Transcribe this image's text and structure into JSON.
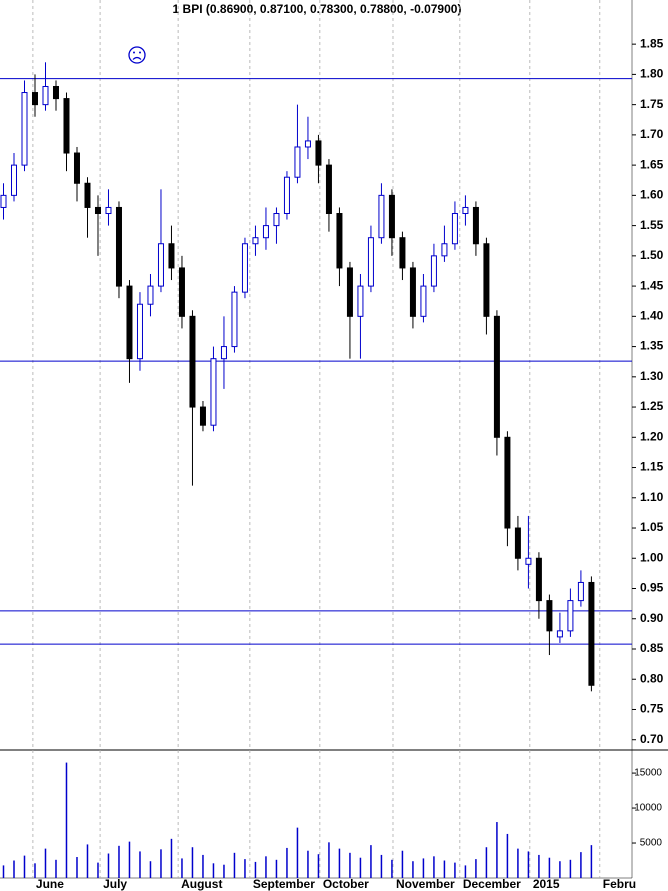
{
  "chart_data": [
    {
      "type": "candlestick",
      "title": "1 BPI (0.86900, 0.87100, 0.78300, 0.78800, -0.07900)",
      "up_color": "#0000cc",
      "down_color": "#000000",
      "x": [
        1,
        4,
        7,
        10,
        13,
        16,
        19,
        22,
        25,
        28,
        31,
        34,
        37,
        40,
        43,
        46,
        49,
        52,
        55,
        58,
        61,
        64,
        67,
        70,
        73,
        76,
        79,
        82,
        85,
        88,
        91,
        94,
        97,
        100,
        103,
        106,
        109,
        112,
        115,
        118,
        121,
        124,
        127,
        130,
        133,
        136,
        139,
        142,
        145,
        148,
        151,
        154,
        157,
        160,
        163,
        166,
        169
      ],
      "open": [
        1.58,
        1.6,
        1.65,
        1.77,
        1.75,
        1.78,
        1.76,
        1.67,
        1.62,
        1.58,
        1.57,
        1.58,
        1.45,
        1.33,
        1.42,
        1.45,
        1.52,
        1.48,
        1.4,
        1.25,
        1.22,
        1.33,
        1.35,
        1.44,
        1.52,
        1.53,
        1.55,
        1.57,
        1.63,
        1.68,
        1.69,
        1.65,
        1.57,
        1.48,
        1.4,
        1.45,
        1.53,
        1.6,
        1.53,
        1.48,
        1.4,
        1.45,
        1.5,
        1.52,
        1.57,
        1.58,
        1.52,
        1.4,
        1.2,
        1.05,
        0.99,
        1.0,
        0.93,
        0.87,
        0.88,
        0.93,
        0.96
      ],
      "high": [
        1.62,
        1.67,
        1.79,
        1.8,
        1.82,
        1.79,
        1.77,
        1.68,
        1.63,
        1.6,
        1.61,
        1.59,
        1.46,
        1.44,
        1.47,
        1.61,
        1.55,
        1.5,
        1.41,
        1.26,
        1.35,
        1.4,
        1.45,
        1.53,
        1.55,
        1.58,
        1.58,
        1.64,
        1.75,
        1.73,
        1.7,
        1.66,
        1.58,
        1.49,
        1.47,
        1.55,
        1.62,
        1.61,
        1.54,
        1.49,
        1.47,
        1.52,
        1.55,
        1.59,
        1.6,
        1.59,
        1.53,
        1.41,
        1.21,
        1.07,
        1.07,
        1.01,
        0.94,
        0.91,
        0.95,
        0.98,
        0.97
      ],
      "low": [
        1.56,
        1.59,
        1.64,
        1.73,
        1.74,
        1.74,
        1.64,
        1.59,
        1.53,
        1.5,
        1.55,
        1.43,
        1.29,
        1.31,
        1.4,
        1.44,
        1.46,
        1.38,
        1.12,
        1.21,
        1.21,
        1.28,
        1.34,
        1.43,
        1.5,
        1.51,
        1.52,
        1.56,
        1.62,
        1.66,
        1.62,
        1.54,
        1.45,
        1.33,
        1.33,
        1.44,
        1.52,
        1.5,
        1.46,
        1.38,
        1.39,
        1.44,
        1.49,
        1.51,
        1.55,
        1.5,
        1.37,
        1.17,
        1.02,
        0.98,
        0.95,
        0.9,
        0.84,
        0.86,
        0.87,
        0.92,
        0.78
      ],
      "close": [
        1.6,
        1.65,
        1.77,
        1.75,
        1.78,
        1.76,
        1.67,
        1.62,
        1.58,
        1.57,
        1.58,
        1.45,
        1.33,
        1.42,
        1.45,
        1.52,
        1.48,
        1.4,
        1.25,
        1.22,
        1.33,
        1.35,
        1.44,
        1.52,
        1.53,
        1.55,
        1.57,
        1.63,
        1.68,
        1.69,
        1.65,
        1.57,
        1.48,
        1.4,
        1.45,
        1.53,
        1.6,
        1.53,
        1.48,
        1.4,
        1.45,
        1.5,
        1.52,
        1.57,
        1.58,
        1.52,
        1.4,
        1.2,
        1.05,
        1.0,
        1.0,
        0.93,
        0.88,
        0.88,
        0.93,
        0.96,
        0.79
      ],
      "reference_lines": [
        1.793,
        1.326,
        0.913,
        0.858
      ],
      "xlim": [
        0,
        180.6
      ],
      "xticks": [
        {
          "value": 9.4,
          "label": "June"
        },
        {
          "value": 28.6,
          "label": "July"
        },
        {
          "value": 50.9,
          "label": "August"
        },
        {
          "value": 71.4,
          "label": "September"
        },
        {
          "value": 91.4,
          "label": "October"
        },
        {
          "value": 112.3,
          "label": "November"
        },
        {
          "value": 131.4,
          "label": "December"
        },
        {
          "value": 151.4,
          "label": "2015"
        },
        {
          "value": 171.4,
          "label": "Febru"
        }
      ],
      "ylim": [
        0.683,
        1.923
      ],
      "yticks": [
        {
          "value": 0.7,
          "label": "0.70"
        },
        {
          "value": 0.75,
          "label": "0.75"
        },
        {
          "value": 0.8,
          "label": "0.80"
        },
        {
          "value": 0.85,
          "label": "0.85"
        },
        {
          "value": 0.9,
          "label": "0.90"
        },
        {
          "value": 0.95,
          "label": "0.95"
        },
        {
          "value": 1.0,
          "label": "1.00"
        },
        {
          "value": 1.05,
          "label": "1.05"
        },
        {
          "value": 1.1,
          "label": "1.10"
        },
        {
          "value": 1.15,
          "label": "1.15"
        },
        {
          "value": 1.2,
          "label": "1.20"
        },
        {
          "value": 1.25,
          "label": "1.25"
        },
        {
          "value": 1.3,
          "label": "1.30"
        },
        {
          "value": 1.35,
          "label": "1.35"
        },
        {
          "value": 1.4,
          "label": "1.40"
        },
        {
          "value": 1.45,
          "label": "1.45"
        },
        {
          "value": 1.5,
          "label": "1.50"
        },
        {
          "value": 1.55,
          "label": "1.55"
        },
        {
          "value": 1.6,
          "label": "1.60"
        },
        {
          "value": 1.65,
          "label": "1.65"
        },
        {
          "value": 1.7,
          "label": "1.70"
        },
        {
          "value": 1.75,
          "label": "1.75"
        },
        {
          "value": 1.8,
          "label": "1.80"
        },
        {
          "value": 1.85,
          "label": "1.85"
        }
      ]
    },
    {
      "type": "bar",
      "color": "#0000cc",
      "x": [
        1,
        4,
        7,
        10,
        13,
        16,
        19,
        22,
        25,
        28,
        31,
        34,
        37,
        40,
        43,
        46,
        49,
        52,
        55,
        58,
        61,
        64,
        67,
        70,
        73,
        76,
        79,
        82,
        85,
        88,
        91,
        94,
        97,
        100,
        103,
        106,
        109,
        112,
        115,
        118,
        121,
        124,
        127,
        130,
        133,
        136,
        139,
        142,
        145,
        148,
        151,
        154,
        157,
        160,
        163,
        166,
        169
      ],
      "values": [
        1800,
        2500,
        3200,
        2100,
        4200,
        2600,
        16500,
        3000,
        4800,
        2200,
        3500,
        4600,
        5200,
        3800,
        2400,
        4100,
        5600,
        2800,
        4400,
        3300,
        2100,
        1900,
        3600,
        2700,
        2300,
        3100,
        2600,
        4300,
        7200,
        3900,
        3400,
        5100,
        4200,
        3600,
        2900,
        4700,
        3300,
        2600,
        3900,
        2400,
        2800,
        3100,
        2500,
        2200,
        1800,
        2700,
        4400,
        8000,
        6300,
        4200,
        3800,
        3300,
        2900,
        2400,
        2600,
        3700,
        4700
      ],
      "ylim": [
        0,
        18300
      ],
      "yticks": [
        5000,
        10000,
        15000
      ]
    }
  ]
}
